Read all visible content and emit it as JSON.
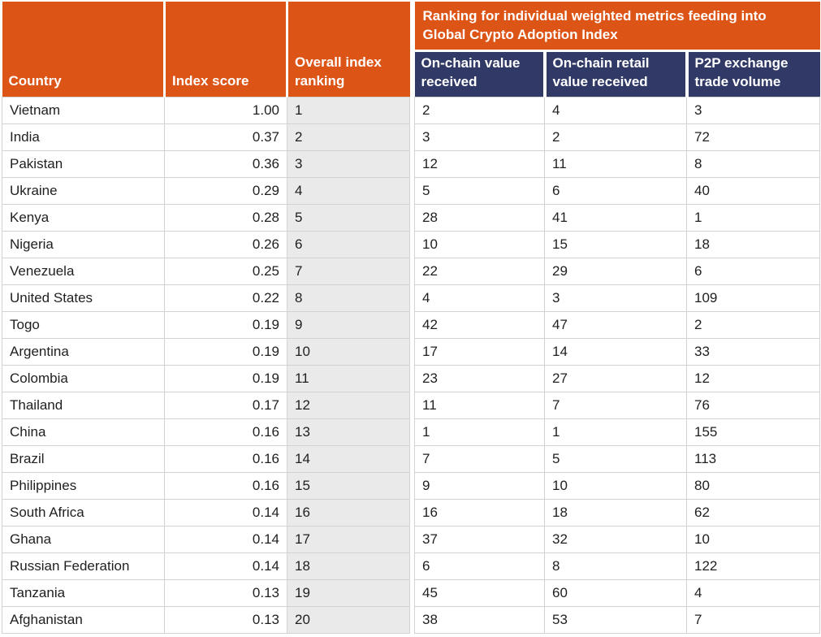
{
  "colors": {
    "orange": "#DD5417",
    "navy": "#313A66",
    "gray_column": "#EAEAEA",
    "border": "#D2D2D2",
    "header_text": "#FFFFFF",
    "body_text": "#1F1F1F"
  },
  "header": {
    "country": "Country",
    "index_score": "Index score",
    "overall_ranking": "Overall index ranking",
    "banner": "Ranking for individual weighted metrics feeding into Global Crypto Adoption Index",
    "metrics": [
      "On-chain value received",
      "On-chain retail value received",
      "P2P exchange trade volume"
    ]
  },
  "rows": [
    {
      "country": "Vietnam",
      "score": "1.00",
      "rank": "1",
      "onchain": "2",
      "retail": "4",
      "p2p": "3"
    },
    {
      "country": "India",
      "score": "0.37",
      "rank": "2",
      "onchain": "3",
      "retail": "2",
      "p2p": "72"
    },
    {
      "country": "Pakistan",
      "score": "0.36",
      "rank": "3",
      "onchain": "12",
      "retail": "11",
      "p2p": "8"
    },
    {
      "country": "Ukraine",
      "score": "0.29",
      "rank": "4",
      "onchain": "5",
      "retail": "6",
      "p2p": "40"
    },
    {
      "country": "Kenya",
      "score": "0.28",
      "rank": "5",
      "onchain": "28",
      "retail": "41",
      "p2p": "1"
    },
    {
      "country": "Nigeria",
      "score": "0.26",
      "rank": "6",
      "onchain": "10",
      "retail": "15",
      "p2p": "18"
    },
    {
      "country": "Venezuela",
      "score": "0.25",
      "rank": "7",
      "onchain": "22",
      "retail": "29",
      "p2p": "6"
    },
    {
      "country": "United States",
      "score": "0.22",
      "rank": "8",
      "onchain": "4",
      "retail": "3",
      "p2p": "109"
    },
    {
      "country": "Togo",
      "score": "0.19",
      "rank": "9",
      "onchain": "42",
      "retail": "47",
      "p2p": "2"
    },
    {
      "country": "Argentina",
      "score": "0.19",
      "rank": "10",
      "onchain": "17",
      "retail": "14",
      "p2p": "33"
    },
    {
      "country": "Colombia",
      "score": "0.19",
      "rank": "11",
      "onchain": "23",
      "retail": "27",
      "p2p": "12"
    },
    {
      "country": "Thailand",
      "score": "0.17",
      "rank": "12",
      "onchain": "11",
      "retail": "7",
      "p2p": "76"
    },
    {
      "country": "China",
      "score": "0.16",
      "rank": "13",
      "onchain": "1",
      "retail": "1",
      "p2p": "155"
    },
    {
      "country": "Brazil",
      "score": "0.16",
      "rank": "14",
      "onchain": "7",
      "retail": "5",
      "p2p": "113"
    },
    {
      "country": "Philippines",
      "score": "0.16",
      "rank": "15",
      "onchain": "9",
      "retail": "10",
      "p2p": "80"
    },
    {
      "country": "South Africa",
      "score": "0.14",
      "rank": "16",
      "onchain": "16",
      "retail": "18",
      "p2p": "62"
    },
    {
      "country": "Ghana",
      "score": "0.14",
      "rank": "17",
      "onchain": "37",
      "retail": "32",
      "p2p": "10"
    },
    {
      "country": "Russian Federation",
      "score": "0.14",
      "rank": "18",
      "onchain": "6",
      "retail": "8",
      "p2p": "122"
    },
    {
      "country": "Tanzania",
      "score": "0.13",
      "rank": "19",
      "onchain": "45",
      "retail": "60",
      "p2p": "4"
    },
    {
      "country": "Afghanistan",
      "score": "0.13",
      "rank": "20",
      "onchain": "38",
      "retail": "53",
      "p2p": "7"
    }
  ],
  "chart_data": {
    "type": "table",
    "title": "Ranking for individual weighted metrics feeding into Global Crypto Adoption Index",
    "columns": [
      "Country",
      "Index score",
      "Overall index ranking",
      "On-chain value received",
      "On-chain retail value received",
      "P2P exchange trade volume"
    ],
    "rows": [
      [
        "Vietnam",
        1.0,
        1,
        2,
        4,
        3
      ],
      [
        "India",
        0.37,
        2,
        3,
        2,
        72
      ],
      [
        "Pakistan",
        0.36,
        3,
        12,
        11,
        8
      ],
      [
        "Ukraine",
        0.29,
        4,
        5,
        6,
        40
      ],
      [
        "Kenya",
        0.28,
        5,
        28,
        41,
        1
      ],
      [
        "Nigeria",
        0.26,
        6,
        10,
        15,
        18
      ],
      [
        "Venezuela",
        0.25,
        7,
        22,
        29,
        6
      ],
      [
        "United States",
        0.22,
        8,
        4,
        3,
        109
      ],
      [
        "Togo",
        0.19,
        9,
        42,
        47,
        2
      ],
      [
        "Argentina",
        0.19,
        10,
        17,
        14,
        33
      ],
      [
        "Colombia",
        0.19,
        11,
        23,
        27,
        12
      ],
      [
        "Thailand",
        0.17,
        12,
        11,
        7,
        76
      ],
      [
        "China",
        0.16,
        13,
        1,
        1,
        155
      ],
      [
        "Brazil",
        0.16,
        14,
        7,
        5,
        113
      ],
      [
        "Philippines",
        0.16,
        15,
        9,
        10,
        80
      ],
      [
        "South Africa",
        0.14,
        16,
        16,
        18,
        62
      ],
      [
        "Ghana",
        0.14,
        17,
        37,
        32,
        10
      ],
      [
        "Russian Federation",
        0.14,
        18,
        6,
        8,
        122
      ],
      [
        "Tanzania",
        0.13,
        19,
        45,
        60,
        4
      ],
      [
        "Afghanistan",
        0.13,
        20,
        38,
        53,
        7
      ]
    ]
  }
}
